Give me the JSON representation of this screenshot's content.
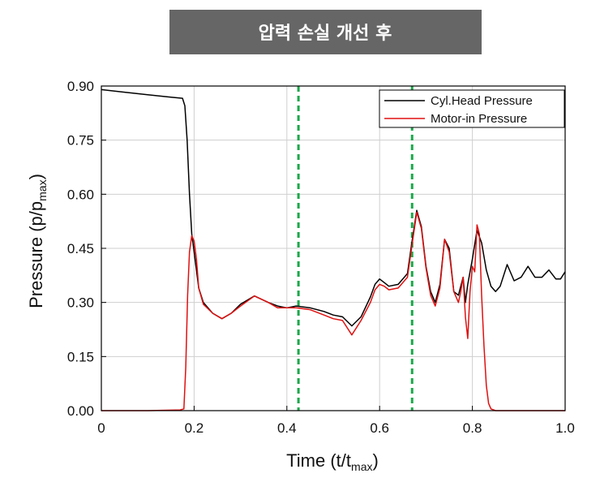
{
  "chart_data": {
    "type": "line",
    "title": "압력 손실 개선 후",
    "xlabel": "Time (t/t",
    "xlabel_sub": "max",
    "xlabel_close": ")",
    "ylabel": "Pressure (p/p",
    "ylabel_sub": "max",
    "ylabel_close": ")",
    "xlim": [
      0,
      1.0
    ],
    "ylim": [
      0,
      0.9
    ],
    "xticks": [
      0,
      0.2,
      0.4,
      0.6,
      0.8,
      1.0
    ],
    "xtick_labels": [
      "0",
      "0.2",
      "0.4",
      "0.6",
      "0.8",
      "1.0"
    ],
    "yticks": [
      0,
      0.15,
      0.3,
      0.45,
      0.6,
      0.75,
      0.9
    ],
    "ytick_labels": [
      "0.00",
      "0.15",
      "0.30",
      "0.45",
      "0.60",
      "0.75",
      "0.90"
    ],
    "grid": true,
    "legend_position": "top-right",
    "vlines": [
      {
        "x": 0.425,
        "color": "#1aa84a",
        "style": "dashed"
      },
      {
        "x": 0.67,
        "color": "#1aa84a",
        "style": "dashed"
      }
    ],
    "series": [
      {
        "name": "Cyl.Head Pressure",
        "color": "#000000",
        "x": [
          0,
          0.05,
          0.1,
          0.15,
          0.175,
          0.18,
          0.185,
          0.19,
          0.195,
          0.2,
          0.21,
          0.22,
          0.24,
          0.26,
          0.28,
          0.3,
          0.33,
          0.36,
          0.38,
          0.4,
          0.42,
          0.45,
          0.48,
          0.5,
          0.52,
          0.54,
          0.56,
          0.58,
          0.59,
          0.6,
          0.61,
          0.62,
          0.64,
          0.66,
          0.67,
          0.68,
          0.69,
          0.7,
          0.71,
          0.72,
          0.73,
          0.74,
          0.75,
          0.76,
          0.77,
          0.78,
          0.785,
          0.79,
          0.8,
          0.81,
          0.82,
          0.83,
          0.84,
          0.85,
          0.86,
          0.875,
          0.89,
          0.905,
          0.92,
          0.935,
          0.95,
          0.965,
          0.98,
          0.99,
          1.0
        ],
        "y": [
          0.89,
          0.883,
          0.876,
          0.869,
          0.866,
          0.845,
          0.75,
          0.6,
          0.49,
          0.44,
          0.34,
          0.3,
          0.27,
          0.255,
          0.27,
          0.295,
          0.318,
          0.3,
          0.29,
          0.285,
          0.29,
          0.285,
          0.275,
          0.265,
          0.26,
          0.235,
          0.26,
          0.315,
          0.35,
          0.365,
          0.355,
          0.345,
          0.35,
          0.38,
          0.47,
          0.555,
          0.51,
          0.4,
          0.33,
          0.3,
          0.35,
          0.475,
          0.45,
          0.33,
          0.32,
          0.37,
          0.3,
          0.35,
          0.42,
          0.5,
          0.465,
          0.39,
          0.345,
          0.33,
          0.345,
          0.405,
          0.36,
          0.37,
          0.4,
          0.37,
          0.37,
          0.39,
          0.365,
          0.365,
          0.385
        ]
      },
      {
        "name": "Motor-in Pressure",
        "color": "#e01010",
        "x": [
          0,
          0.1,
          0.17,
          0.178,
          0.182,
          0.186,
          0.19,
          0.195,
          0.2,
          0.205,
          0.21,
          0.22,
          0.24,
          0.26,
          0.28,
          0.3,
          0.33,
          0.36,
          0.38,
          0.4,
          0.42,
          0.45,
          0.48,
          0.5,
          0.52,
          0.54,
          0.56,
          0.58,
          0.59,
          0.6,
          0.61,
          0.62,
          0.64,
          0.66,
          0.67,
          0.68,
          0.69,
          0.7,
          0.71,
          0.72,
          0.73,
          0.74,
          0.75,
          0.76,
          0.77,
          0.775,
          0.78,
          0.785,
          0.79,
          0.795,
          0.8,
          0.805,
          0.81,
          0.815,
          0.82,
          0.825,
          0.83,
          0.835,
          0.84,
          0.85,
          0.87,
          0.9,
          0.95,
          1.0
        ],
        "y": [
          0.0,
          0.0,
          0.002,
          0.005,
          0.12,
          0.32,
          0.44,
          0.485,
          0.47,
          0.42,
          0.34,
          0.295,
          0.27,
          0.255,
          0.27,
          0.29,
          0.318,
          0.3,
          0.285,
          0.285,
          0.285,
          0.28,
          0.265,
          0.255,
          0.25,
          0.21,
          0.25,
          0.3,
          0.335,
          0.35,
          0.345,
          0.335,
          0.34,
          0.37,
          0.46,
          0.55,
          0.505,
          0.395,
          0.32,
          0.29,
          0.34,
          0.475,
          0.44,
          0.33,
          0.3,
          0.33,
          0.37,
          0.26,
          0.2,
          0.33,
          0.4,
          0.385,
          0.515,
          0.49,
          0.32,
          0.18,
          0.07,
          0.02,
          0.005,
          0.0,
          0.0,
          0.0,
          0.0,
          0.0
        ]
      }
    ]
  }
}
